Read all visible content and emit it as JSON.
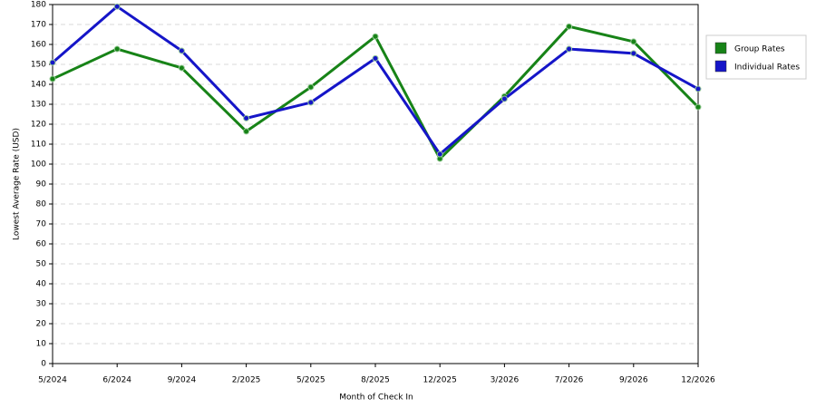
{
  "chart_data": {
    "type": "line",
    "x_label": "Month of Check In",
    "y_label": "Lowest Average Rate (USD)",
    "categories": [
      "5/2024",
      "6/2024",
      "9/2024",
      "2/2025",
      "5/2025",
      "8/2025",
      "12/2025",
      "3/2026",
      "7/2026",
      "9/2026",
      "12/2026"
    ],
    "series": [
      {
        "name": "Group Rates",
        "color": "#178317",
        "values": [
          142.7,
          157.7,
          148.2,
          116.4,
          138.6,
          164,
          102.7,
          134,
          169,
          161.4,
          128.6
        ]
      },
      {
        "name": "Individual Rates",
        "color": "#1515c8",
        "values": [
          150.9,
          179,
          156.8,
          123,
          130.9,
          153,
          105,
          132.7,
          157.7,
          155.5,
          137.7
        ]
      }
    ],
    "ylim": [
      0,
      180
    ],
    "yticks": [
      0,
      10,
      20,
      30,
      40,
      50,
      60,
      70,
      80,
      90,
      100,
      110,
      120,
      130,
      140,
      150,
      160,
      170,
      180
    ],
    "grid": true,
    "legend": "right"
  }
}
